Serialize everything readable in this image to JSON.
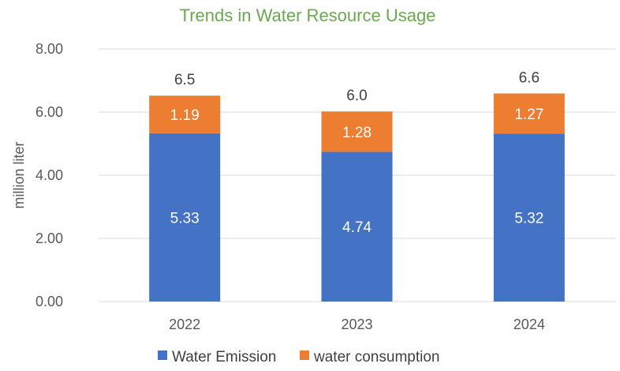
{
  "chart_data": {
    "type": "bar",
    "stacked": true,
    "title": "Trends in Water Resource Usage",
    "xlabel": "",
    "ylabel": "million liter",
    "ylim": [
      0,
      8
    ],
    "yticks": [
      "0.00",
      "2.00",
      "4.00",
      "6.00",
      "8.00"
    ],
    "categories": [
      "2022",
      "2023",
      "2024"
    ],
    "series": [
      {
        "name": "Water Emission",
        "values": [
          5.33,
          4.74,
          5.32
        ],
        "labels": [
          "5.33",
          "4.74",
          "5.32"
        ],
        "color": "#4472c4"
      },
      {
        "name": "water consumption",
        "values": [
          1.19,
          1.28,
          1.27
        ],
        "labels": [
          "1.19",
          "1.28",
          "1.27"
        ],
        "color": "#ed7d31"
      }
    ],
    "totals": [
      "6.5",
      "6.0",
      "6.6"
    ],
    "grid": true,
    "legend_position": "bottom",
    "colors": {
      "title": "#6aa84f",
      "grid": "#d9d9d9",
      "axis_text": "#595959"
    }
  }
}
